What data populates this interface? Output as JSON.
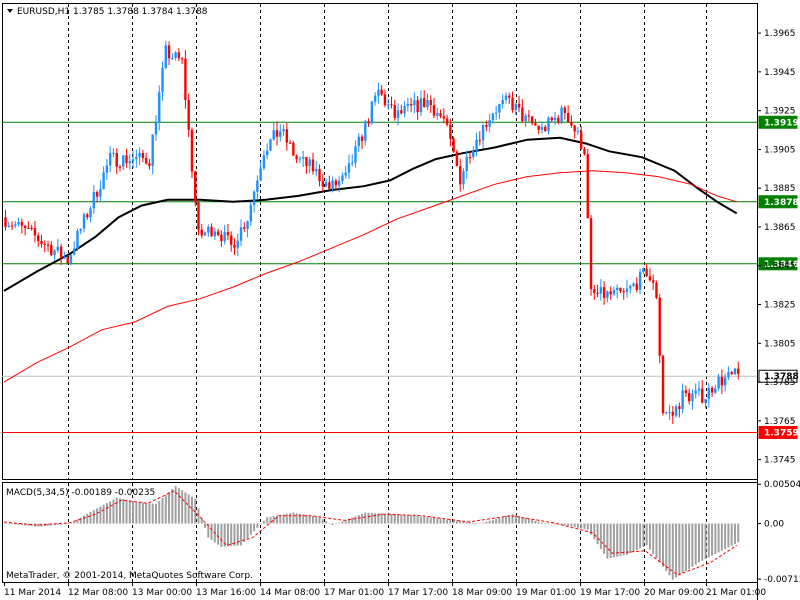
{
  "chart_data": [
    {
      "type": "candlestick",
      "title": "EURUSD,H1  1.3785 1.3788 1.3784 1.3788",
      "symbol": "EURUSD,H1",
      "ohlc_header": "1.3785 1.3788 1.3784 1.3788",
      "ylim": [
        1.3735,
        1.398
      ],
      "y_ticks": [
        "1.3965",
        "1.3945",
        "1.3925",
        "1.3905",
        "1.3885",
        "1.3865",
        "1.3845",
        "1.3825",
        "1.3805",
        "1.3785",
        "1.3765",
        "1.3745"
      ],
      "x_ticks": [
        "11 Mar 2014",
        "12 Mar 08:00",
        "13 Mar 00:00",
        "13 Mar 16:00",
        "14 Mar 08:00",
        "17 Mar 01:00",
        "17 Mar 17:00",
        "18 Mar 09:00",
        "19 Mar 01:00",
        "19 Mar 17:00",
        "20 Mar 09:00",
        "21 Mar 01:00"
      ],
      "grid": "vertical dashed",
      "horizontal_levels": [
        {
          "label": "1.3919",
          "value": 1.3919,
          "color": "#008000"
        },
        {
          "label": "1.3878",
          "value": 1.3878,
          "color": "#008000"
        },
        {
          "label": "1.3846",
          "value": 1.3846,
          "color": "#008000"
        },
        {
          "label": "1.3788",
          "value": 1.3788,
          "color": "#c0c0c0"
        },
        {
          "label": "1.3759",
          "value": 1.3759,
          "color": "#ff0000"
        }
      ],
      "moving_averages": [
        {
          "color": "#000000",
          "points": [
            [
              0,
              1.3832
            ],
            [
              10,
              1.3842
            ],
            [
              20,
              1.3851
            ],
            [
              28,
              1.386
            ],
            [
              35,
              1.387
            ],
            [
              42,
              1.3876
            ],
            [
              50,
              1.3879
            ],
            [
              60,
              1.3879
            ],
            [
              70,
              1.3878
            ],
            [
              80,
              1.3879
            ],
            [
              90,
              1.3881
            ],
            [
              100,
              1.3884
            ],
            [
              110,
              1.3886
            ],
            [
              118,
              1.3889
            ],
            [
              125,
              1.3895
            ],
            [
              132,
              1.39
            ],
            [
              140,
              1.3903
            ],
            [
              150,
              1.3906
            ],
            [
              160,
              1.391
            ],
            [
              170,
              1.3911
            ],
            [
              178,
              1.3908
            ],
            [
              185,
              1.3904
            ],
            [
              195,
              1.3901
            ],
            [
              205,
              1.3894
            ],
            [
              212,
              1.3885
            ],
            [
              218,
              1.3878
            ],
            [
              224,
              1.3872
            ]
          ]
        },
        {
          "color": "#ff0000",
          "points": [
            [
              0,
              1.3785
            ],
            [
              10,
              1.3795
            ],
            [
              20,
              1.3803
            ],
            [
              30,
              1.3812
            ],
            [
              40,
              1.3816
            ],
            [
              50,
              1.3824
            ],
            [
              60,
              1.3828
            ],
            [
              70,
              1.3834
            ],
            [
              80,
              1.3841
            ],
            [
              90,
              1.3847
            ],
            [
              100,
              1.3854
            ],
            [
              110,
              1.3861
            ],
            [
              120,
              1.3869
            ],
            [
              130,
              1.3875
            ],
            [
              140,
              1.3881
            ],
            [
              150,
              1.3887
            ],
            [
              160,
              1.3891
            ],
            [
              170,
              1.3893
            ],
            [
              180,
              1.3894
            ],
            [
              190,
              1.3893
            ],
            [
              200,
              1.3891
            ],
            [
              210,
              1.3887
            ],
            [
              218,
              1.3881
            ],
            [
              224,
              1.3878
            ]
          ]
        }
      ],
      "candles_generated_from_path": [
        [
          0,
          1.387
        ],
        [
          10,
          1.386
        ],
        [
          20,
          1.3848
        ],
        [
          28,
          1.388
        ],
        [
          33,
          1.39
        ],
        [
          40,
          1.39
        ],
        [
          45,
          1.39
        ],
        [
          50,
          1.3955
        ],
        [
          55,
          1.395
        ],
        [
          60,
          1.386
        ],
        [
          65,
          1.3865
        ],
        [
          70,
          1.3855
        ],
        [
          75,
          1.387
        ],
        [
          80,
          1.3905
        ],
        [
          85,
          1.3915
        ],
        [
          90,
          1.39
        ],
        [
          95,
          1.3895
        ],
        [
          100,
          1.3885
        ],
        [
          105,
          1.389
        ],
        [
          115,
          1.3935
        ],
        [
          120,
          1.3922
        ],
        [
          130,
          1.393
        ],
        [
          135,
          1.392
        ],
        [
          140,
          1.389
        ],
        [
          143,
          1.3905
        ],
        [
          150,
          1.3925
        ],
        [
          155,
          1.393
        ],
        [
          160,
          1.392
        ],
        [
          165,
          1.3915
        ],
        [
          172,
          1.3925
        ],
        [
          175,
          1.3915
        ],
        [
          178,
          1.3905
        ],
        [
          180,
          1.383
        ],
        [
          185,
          1.383
        ],
        [
          190,
          1.383
        ],
        [
          195,
          1.3838
        ],
        [
          197,
          1.3842
        ],
        [
          200,
          1.383
        ],
        [
          202,
          1.377
        ],
        [
          205,
          1.3768
        ],
        [
          208,
          1.3778
        ],
        [
          215,
          1.3778
        ],
        [
          218,
          1.3785
        ],
        [
          224,
          1.3788
        ]
      ]
    },
    {
      "type": "bar",
      "title": "MACD(5,34,5) -0.00189 -0.00235",
      "name": "MACD(5,34,5)",
      "values_header": "-0.00189 -0.00235",
      "ylim": [
        -0.0075,
        0.0052
      ],
      "y_ticks": [
        "0.00504",
        "0.00",
        "-0.00713"
      ],
      "histogram_path": [
        [
          0,
          0.0
        ],
        [
          10,
          -0.0004
        ],
        [
          20,
          0.0
        ],
        [
          26,
          0.0015
        ],
        [
          34,
          0.0033
        ],
        [
          40,
          0.0028
        ],
        [
          46,
          0.0025
        ],
        [
          52,
          0.0048
        ],
        [
          58,
          0.0032
        ],
        [
          62,
          -0.0018
        ],
        [
          66,
          -0.003
        ],
        [
          72,
          -0.0028
        ],
        [
          80,
          0.0008
        ],
        [
          88,
          0.0014
        ],
        [
          96,
          0.0008
        ],
        [
          100,
          -0.0002
        ],
        [
          110,
          0.0014
        ],
        [
          120,
          0.0012
        ],
        [
          130,
          0.0008
        ],
        [
          140,
          0.0003
        ],
        [
          145,
          0.0
        ],
        [
          155,
          0.0012
        ],
        [
          165,
          0.0
        ],
        [
          172,
          -0.0003
        ],
        [
          178,
          -0.0008
        ],
        [
          184,
          -0.0045
        ],
        [
          190,
          -0.004
        ],
        [
          196,
          -0.0028
        ],
        [
          204,
          -0.0072
        ],
        [
          212,
          -0.005
        ],
        [
          224,
          -0.0024
        ]
      ],
      "signal_path": [
        [
          0,
          0.0002
        ],
        [
          10,
          -0.0002
        ],
        [
          20,
          0.0001
        ],
        [
          28,
          0.0012
        ],
        [
          36,
          0.003
        ],
        [
          44,
          0.0026
        ],
        [
          52,
          0.0042
        ],
        [
          60,
          0.0008
        ],
        [
          68,
          -0.0028
        ],
        [
          76,
          -0.0018
        ],
        [
          84,
          0.001
        ],
        [
          94,
          0.001
        ],
        [
          104,
          0.0004
        ],
        [
          116,
          0.0012
        ],
        [
          128,
          0.001
        ],
        [
          142,
          0.0002
        ],
        [
          155,
          0.001
        ],
        [
          168,
          0.0001
        ],
        [
          180,
          -0.0012
        ],
        [
          186,
          -0.0038
        ],
        [
          196,
          -0.0035
        ],
        [
          206,
          -0.0066
        ],
        [
          216,
          -0.005
        ],
        [
          224,
          -0.0028
        ]
      ]
    }
  ],
  "footer": {
    "copyright": "MetaTrader, © 2001-2014, MetaQuotes Software Corp."
  },
  "colors": {
    "up": "#1e90ff",
    "down": "#ff0000",
    "ma_fast": "#000000",
    "ma_slow": "#ff0000",
    "level": "#008000",
    "histogram": "#a0a0a0",
    "signal": "#ff0000"
  }
}
